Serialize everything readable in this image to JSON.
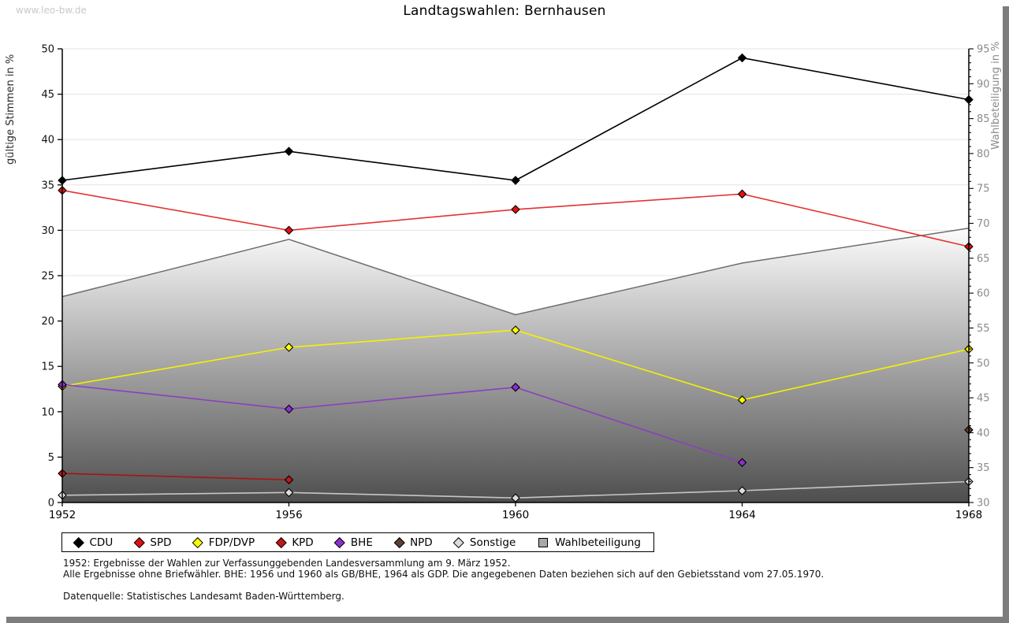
{
  "page": {
    "watermark": "www.leo-bw.de",
    "footer_lines": [
      "1952: Ergebnisse der Wahlen zur Verfassunggebenden Landesversammlung am 9. März 1952.",
      "Alle Ergebnisse ohne Briefwähler. BHE: 1956 und 1960 als GB/BHE, 1964 als GDP. Die angegebenen Daten beziehen sich auf den Gebietsstand vom 27.05.1970.",
      "Datenquelle: Statistisches Landesamt Baden-Württemberg."
    ]
  },
  "chart_data": {
    "type": "line",
    "title": "Landtagswahlen: Bernhausen",
    "x": [
      1952,
      1956,
      1960,
      1964,
      1968
    ],
    "left_axis": {
      "label": "gültige Stimmen in %",
      "min": 0,
      "max": 50,
      "step": 5
    },
    "right_axis": {
      "label": "Wahlbeteiligung in %",
      "min": 30,
      "max": 95,
      "step": 5,
      "minor_step": 1
    },
    "grid": true,
    "legend_position": "bottom",
    "series": [
      {
        "name": "CDU",
        "color": "#000000",
        "marker": "#000000",
        "values": [
          35.5,
          38.7,
          35.5,
          49.0,
          44.4
        ]
      },
      {
        "name": "SPD",
        "color": "#e53232",
        "marker": "#e01212",
        "values": [
          34.4,
          30.0,
          32.3,
          34.0,
          28.2
        ]
      },
      {
        "name": "FDP/DVP",
        "color": "#f2f200",
        "marker": "#ffff00",
        "values": [
          12.8,
          17.1,
          19.0,
          11.3,
          16.9
        ]
      },
      {
        "name": "KPD",
        "color": "#a81414",
        "marker": "#c41414",
        "values": [
          3.2,
          2.5,
          null,
          null,
          null
        ]
      },
      {
        "name": "BHE",
        "color": "#8c3fc0",
        "marker": "#8c2fd0",
        "values": [
          13.0,
          10.3,
          12.7,
          4.4,
          null
        ]
      },
      {
        "name": "NPD",
        "color": "#5c4033",
        "marker": "#5c4033",
        "values": [
          null,
          null,
          null,
          null,
          8.0
        ]
      },
      {
        "name": "Sonstige",
        "color": "#c6c6c6",
        "marker": "#dcdcdc",
        "values": [
          0.8,
          1.1,
          0.5,
          1.3,
          2.3
        ]
      }
    ],
    "area_series": {
      "name": "Wahlbeteiligung",
      "axis": "right",
      "values": [
        59.5,
        67.7,
        56.9,
        64.3,
        69.3
      ],
      "fill_top": "#fcfcfc",
      "fill_bottom": "#4e4e4e",
      "edge_color": "#6e6e6e",
      "legend_fill": "#a8a8a8"
    }
  }
}
